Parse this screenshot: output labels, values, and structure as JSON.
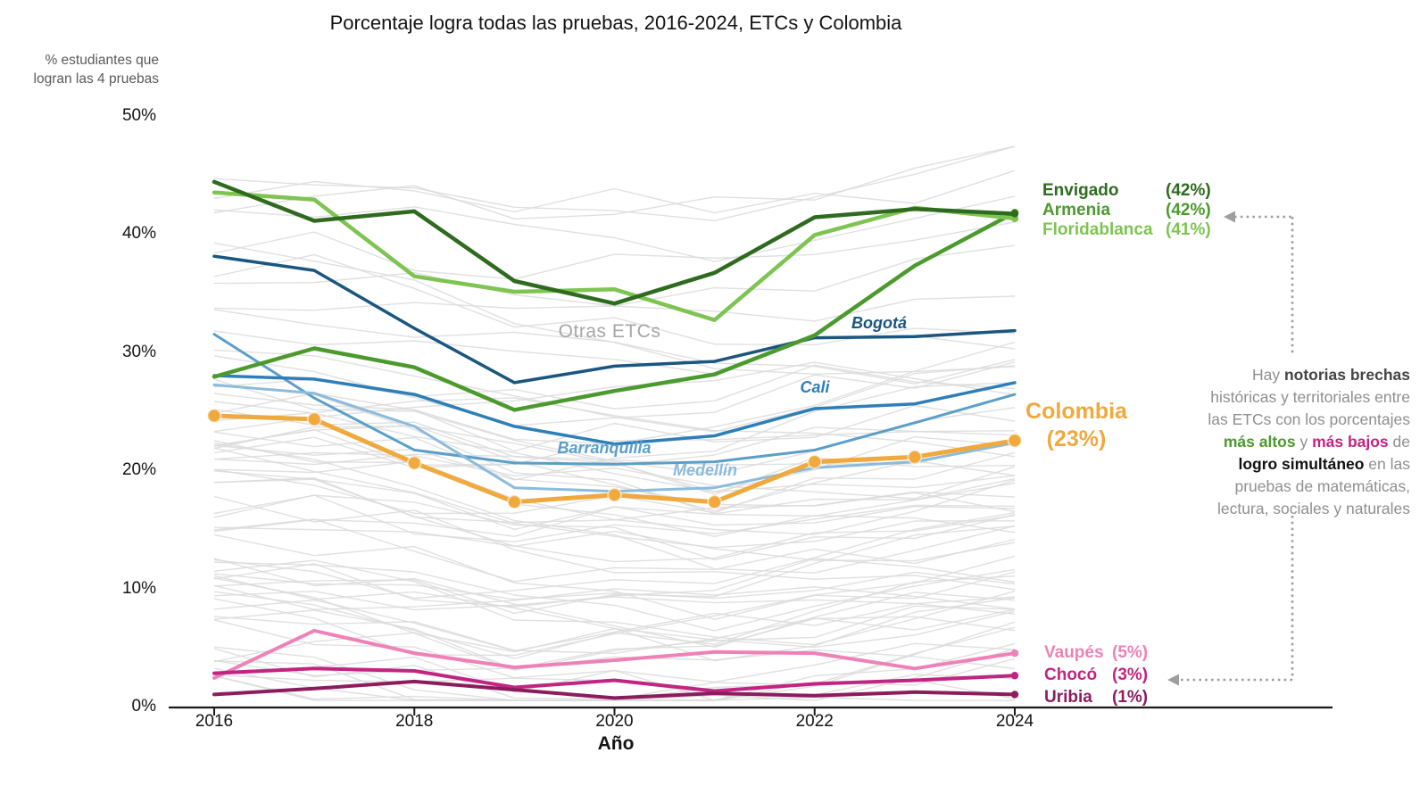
{
  "header": {
    "title": "Porcentaje logra todas las pruebas, 2016-2024, ETCs y Colombia"
  },
  "y_axis": {
    "title_line1": "% estudiantes que",
    "title_line2": "logran las 4 pruebas",
    "tick_labels": [
      "0%",
      "10%",
      "20%",
      "30%",
      "40%",
      "50%"
    ],
    "tick_values": [
      0,
      10,
      20,
      30,
      40,
      50
    ]
  },
  "x_axis": {
    "title": "Año",
    "tick_labels": [
      "2016",
      "2018",
      "2020",
      "2022",
      "2024"
    ],
    "tick_values": [
      2016,
      2018,
      2020,
      2022,
      2024
    ]
  },
  "chart_data": {
    "type": "line",
    "x": [
      2016,
      2017,
      2018,
      2019,
      2020,
      2021,
      2022,
      2023,
      2024
    ],
    "ylim": [
      0,
      50
    ],
    "grid": false,
    "legend_position": "right",
    "series": [
      {
        "name": "barranquilla",
        "label": "Barranquilla",
        "color": "#5b9fc9",
        "width": 3,
        "values": [
          31.6,
          26.2,
          21.8,
          20.7,
          20.6,
          20.8,
          21.8,
          24.1,
          26.5
        ],
        "marker": false,
        "end_dot": false
      },
      {
        "name": "medellin",
        "label": "Medellín",
        "color": "#8cbbdc",
        "width": 3,
        "values": [
          27.3,
          26.6,
          23.8,
          18.6,
          18.3,
          18.6,
          20.3,
          20.8,
          22.4
        ],
        "marker": false,
        "end_dot": false
      },
      {
        "name": "cali",
        "label": "Cali",
        "color": "#2e7fb8",
        "width": 3.5,
        "values": [
          28.1,
          27.8,
          26.5,
          23.8,
          22.3,
          23.0,
          25.3,
          25.7,
          27.5
        ],
        "marker": false,
        "end_dot": false
      },
      {
        "name": "bogota",
        "label": "Bogotá",
        "color": "#1a567f",
        "width": 3.5,
        "values": [
          38.2,
          37.0,
          32.1,
          27.5,
          28.9,
          29.3,
          31.3,
          31.4,
          31.9
        ],
        "marker": false,
        "end_dot": false
      },
      {
        "name": "armenia",
        "label": "Armenia",
        "color": "#4c9a2e",
        "width": 4.5,
        "values": [
          28.0,
          30.4,
          28.8,
          25.2,
          26.8,
          28.2,
          31.5,
          37.4,
          41.9
        ],
        "marker": false,
        "end_dot": true
      },
      {
        "name": "floridablanca",
        "label": "Floridablanca",
        "color": "#7ec451",
        "width": 4.5,
        "values": [
          43.6,
          43.0,
          36.5,
          35.2,
          35.4,
          32.8,
          40.0,
          42.3,
          41.4
        ],
        "marker": false,
        "end_dot": true
      },
      {
        "name": "envigado",
        "label": "Envigado",
        "color": "#2e6b1f",
        "width": 4.5,
        "values": [
          44.5,
          41.2,
          42.0,
          36.1,
          34.2,
          36.8,
          41.5,
          42.2,
          41.8
        ],
        "marker": false,
        "end_dot": true
      },
      {
        "name": "vaupes",
        "label": "Vaupés",
        "color": "#ee82b8",
        "width": 4,
        "values": [
          2.5,
          6.5,
          4.6,
          3.4,
          4.0,
          4.7,
          4.6,
          3.3,
          4.6
        ],
        "marker": false,
        "end_dot": true
      },
      {
        "name": "choco",
        "label": "Chocó",
        "color": "#c12581",
        "width": 4,
        "values": [
          2.9,
          3.3,
          3.1,
          1.7,
          2.3,
          1.4,
          2.0,
          2.3,
          2.7
        ],
        "marker": false,
        "end_dot": true
      },
      {
        "name": "uribia",
        "label": "Uribia",
        "color": "#8c1c5e",
        "width": 4,
        "values": [
          1.1,
          1.6,
          2.2,
          1.5,
          0.8,
          1.2,
          1.0,
          1.3,
          1.1
        ],
        "marker": false,
        "end_dot": true
      },
      {
        "name": "colombia",
        "label": "Colombia",
        "color": "#efa93d",
        "width": 5,
        "values": [
          24.7,
          24.4,
          20.7,
          17.4,
          18.0,
          17.4,
          20.8,
          21.2,
          22.6
        ],
        "marker": true,
        "end_dot": false
      }
    ],
    "other_etcs": {
      "label": "Otras ETCs",
      "count": 72,
      "color": "#dadada",
      "width": 1.4,
      "opacity": 0.85
    }
  },
  "inline_labels": [
    {
      "id": "bogota",
      "text": "Bogotá",
      "color": "#1a567f"
    },
    {
      "id": "cali",
      "text": "Cali",
      "color": "#2e7fb8"
    },
    {
      "id": "barranquilla",
      "text": "Barranquilla",
      "color": "#5b9fc9"
    },
    {
      "id": "medellin",
      "text": "Medellín",
      "color": "#8cbbdc"
    }
  ],
  "legend_top": {
    "rows": [
      {
        "name": "Envigado",
        "value": "(42%)",
        "color": "#2e6b1f"
      },
      {
        "name": "Armenia",
        "value": "(42%)",
        "color": "#4c9a2e"
      },
      {
        "name": "Floridablanca",
        "value": "(41%)",
        "color": "#7ec451"
      }
    ]
  },
  "legend_colombia": {
    "name": "Colombia",
    "value": "(23%)",
    "color": "#efa93d"
  },
  "legend_bottom": {
    "rows": [
      {
        "name": "Vaupés",
        "value": "(5%)",
        "color": "#ee82b8"
      },
      {
        "name": "Chocó",
        "value": "(3%)",
        "color": "#c12581"
      },
      {
        "name": "Uribia",
        "value": "(1%)",
        "color": "#8c1c5e"
      }
    ]
  },
  "annotation": {
    "green": "#4c9a2e",
    "pink": "#c12581",
    "lines": [
      [
        {
          "t": "Hay "
        },
        {
          "t": "notorias brechas",
          "c": "b-dark"
        }
      ],
      [
        {
          "t": "históricas y territoriales entre"
        }
      ],
      [
        {
          "t": "las ETCs con los porcentajes"
        }
      ],
      [
        {
          "t": "más altos",
          "c": "b-green"
        },
        {
          "t": " y "
        },
        {
          "t": "más bajos",
          "c": "b-pink"
        },
        {
          "t": " de"
        }
      ],
      [
        {
          "t": "logro simultáneo",
          "c": "b-black"
        },
        {
          "t": " en las"
        }
      ],
      [
        {
          "t": "pruebas de matemáticas,"
        }
      ],
      [
        {
          "t": "lectura, sociales y naturales"
        }
      ]
    ]
  }
}
